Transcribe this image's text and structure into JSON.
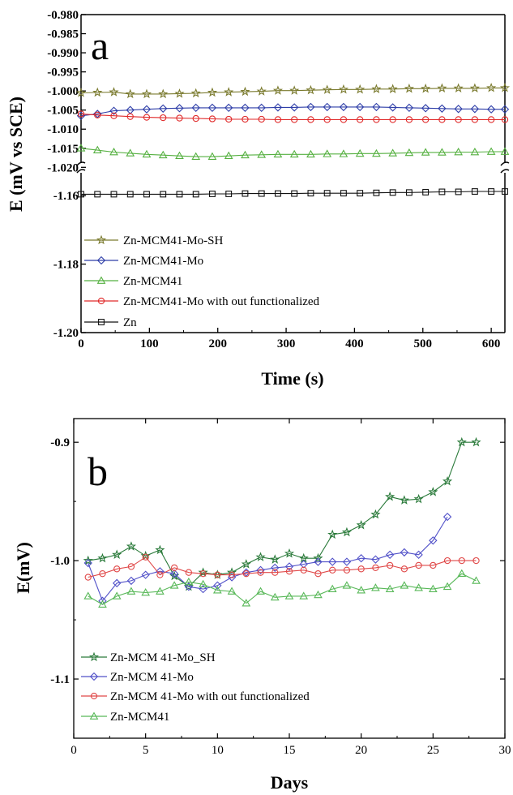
{
  "chart_data": [
    {
      "type": "line",
      "panel_label": "a",
      "xlabel": "Time (s)",
      "ylabel": "E (mV vs SCE)",
      "xlim": [
        0,
        620
      ],
      "x_ticks": [
        "0",
        "100",
        "200",
        "300",
        "400",
        "500",
        "600"
      ],
      "upper_ylim": [
        -1.021,
        -0.98
      ],
      "upper_ticks": [
        "-0.980",
        "-0.985",
        "-0.990",
        "-0.995",
        "-1.000",
        "-1.005",
        "-1.010",
        "-1.015",
        "-1.020"
      ],
      "lower_ylim": [
        -1.2,
        -1.155
      ],
      "lower_ticks": [
        "-1.16",
        "-1.18",
        "-1.20"
      ],
      "axis_break": true,
      "legend_position": "lower-left",
      "series": [
        {
          "name": "Zn-MCM41-Mo-SH",
          "color": "#7a7a2e",
          "marker": "star",
          "axis": "upper",
          "x": [
            0,
            24,
            48,
            72,
            96,
            120,
            144,
            168,
            192,
            216,
            240,
            264,
            288,
            312,
            336,
            360,
            384,
            408,
            432,
            456,
            480,
            504,
            528,
            552,
            576,
            600,
            620
          ],
          "y": [
            -1.0005,
            -1.0004,
            -1.0003,
            -1.0008,
            -1.0008,
            -1.0008,
            -1.0007,
            -1.0006,
            -1.0004,
            -1.0003,
            -1.0002,
            -1.0001,
            -0.9999,
            -0.9999,
            -0.9998,
            -0.9997,
            -0.9996,
            -0.9996,
            -0.9995,
            -0.9995,
            -0.9994,
            -0.9994,
            -0.9993,
            -0.9993,
            -0.9993,
            -0.9992,
            -0.9992
          ]
        },
        {
          "name": "Zn-MCM41-Mo",
          "color": "#2e3ea8",
          "marker": "diamond",
          "axis": "upper",
          "x": [
            0,
            24,
            48,
            72,
            96,
            120,
            144,
            168,
            192,
            216,
            240,
            264,
            288,
            312,
            336,
            360,
            384,
            408,
            432,
            456,
            480,
            504,
            528,
            552,
            576,
            600,
            620
          ],
          "y": [
            -1.0065,
            -1.006,
            -1.0052,
            -1.005,
            -1.0048,
            -1.0046,
            -1.0045,
            -1.0044,
            -1.0044,
            -1.0044,
            -1.0044,
            -1.0044,
            -1.0043,
            -1.0043,
            -1.0042,
            -1.0042,
            -1.0042,
            -1.0042,
            -1.0042,
            -1.0043,
            -1.0044,
            -1.0045,
            -1.0046,
            -1.0047,
            -1.0047,
            -1.0048,
            -1.0048
          ]
        },
        {
          "name": "Zn-MCM41",
          "color": "#55b040",
          "marker": "triangle",
          "axis": "upper",
          "x": [
            0,
            24,
            48,
            72,
            96,
            120,
            144,
            168,
            192,
            216,
            240,
            264,
            288,
            312,
            336,
            360,
            384,
            408,
            432,
            456,
            480,
            504,
            528,
            552,
            576,
            600,
            620
          ],
          "y": [
            -1.015,
            -1.0155,
            -1.016,
            -1.0163,
            -1.0166,
            -1.0168,
            -1.017,
            -1.0172,
            -1.0172,
            -1.017,
            -1.0168,
            -1.0167,
            -1.0166,
            -1.0166,
            -1.0166,
            -1.0165,
            -1.0165,
            -1.0164,
            -1.0164,
            -1.0163,
            -1.0162,
            -1.0161,
            -1.0161,
            -1.016,
            -1.016,
            -1.0159,
            -1.0159
          ]
        },
        {
          "name": "Zn-MCM41-Mo with out functionalized",
          "color": "#e02a2a",
          "marker": "circle",
          "axis": "upper",
          "x": [
            0,
            24,
            48,
            72,
            96,
            120,
            144,
            168,
            192,
            216,
            240,
            264,
            288,
            312,
            336,
            360,
            384,
            408,
            432,
            456,
            480,
            504,
            528,
            552,
            576,
            600,
            620
          ],
          "y": [
            -1.006,
            -1.0063,
            -1.0065,
            -1.0067,
            -1.0069,
            -1.007,
            -1.0071,
            -1.0072,
            -1.0073,
            -1.0074,
            -1.0074,
            -1.0074,
            -1.0075,
            -1.0075,
            -1.0075,
            -1.0075,
            -1.0075,
            -1.0075,
            -1.0075,
            -1.0075,
            -1.0075,
            -1.0075,
            -1.0075,
            -1.0075,
            -1.0075,
            -1.0075,
            -1.0075
          ]
        },
        {
          "name": "Zn",
          "color": "#111111",
          "marker": "square",
          "axis": "lower",
          "x": [
            0,
            24,
            48,
            72,
            96,
            120,
            144,
            168,
            192,
            216,
            240,
            264,
            288,
            312,
            336,
            360,
            384,
            408,
            432,
            456,
            480,
            504,
            528,
            552,
            576,
            600,
            620
          ],
          "y": [
            -1.1596,
            -1.1596,
            -1.1596,
            -1.1596,
            -1.1596,
            -1.1596,
            -1.1596,
            -1.1596,
            -1.1595,
            -1.1595,
            -1.1594,
            -1.1594,
            -1.1594,
            -1.1594,
            -1.1593,
            -1.1593,
            -1.1593,
            -1.1593,
            -1.1592,
            -1.1591,
            -1.1591,
            -1.159,
            -1.1589,
            -1.1589,
            -1.1588,
            -1.1588,
            -1.1588
          ]
        }
      ]
    },
    {
      "type": "line",
      "panel_label": "b",
      "xlabel": "Days",
      "ylabel": "E(mV)",
      "xlim": [
        0,
        30
      ],
      "ylim": [
        -1.15,
        -0.88
      ],
      "x_ticks": [
        "0",
        "5",
        "10",
        "15",
        "20",
        "25",
        "30"
      ],
      "y_ticks": [
        "-0.9",
        "-1.0",
        "-1.1"
      ],
      "legend_position": "lower-left",
      "series": [
        {
          "name": "Zn-MCM 41-Mo_SH",
          "color": "#2a7a3a",
          "marker": "star",
          "x": [
            1,
            2,
            3,
            4,
            5,
            6,
            7,
            8,
            9,
            10,
            11,
            12,
            13,
            14,
            15,
            16,
            17,
            18,
            19,
            20,
            21,
            22,
            23,
            24,
            25,
            26,
            27,
            28
          ],
          "y": [
            -1.0,
            -0.998,
            -0.995,
            -0.988,
            -0.996,
            -0.991,
            -1.013,
            -1.022,
            -1.01,
            -1.012,
            -1.01,
            -1.003,
            -0.997,
            -0.999,
            -0.994,
            -0.998,
            -0.998,
            -0.978,
            -0.976,
            -0.97,
            -0.961,
            -0.946,
            -0.949,
            -0.948,
            -0.942,
            -0.933,
            -0.9,
            -0.9
          ]
        },
        {
          "name": "Zn-MCM 41-Mo",
          "color": "#5050c8",
          "marker": "diamond",
          "x": [
            1,
            2,
            3,
            4,
            5,
            6,
            7,
            8,
            9,
            10,
            11,
            12,
            13,
            14,
            15,
            16,
            17,
            18,
            19,
            20,
            21,
            22,
            23,
            24,
            25,
            26
          ],
          "y": [
            -1.002,
            -1.034,
            -1.019,
            -1.017,
            -1.012,
            -1.009,
            -1.011,
            -1.022,
            -1.024,
            -1.021,
            -1.014,
            -1.01,
            -1.008,
            -1.006,
            -1.005,
            -1.003,
            -1.001,
            -1.001,
            -1.001,
            -0.998,
            -0.999,
            -0.995,
            -0.993,
            -0.995,
            -0.983,
            -0.963
          ]
        },
        {
          "name": "Zn-MCM 41-Mo with out functionalized",
          "color": "#e04848",
          "marker": "circle",
          "x": [
            1,
            2,
            3,
            4,
            5,
            6,
            7,
            8,
            9,
            10,
            11,
            12,
            13,
            14,
            15,
            16,
            17,
            18,
            19,
            20,
            21,
            22,
            23,
            24,
            25,
            26,
            27,
            28
          ],
          "y": [
            -1.014,
            -1.011,
            -1.007,
            -1.005,
            -0.997,
            -1.012,
            -1.006,
            -1.01,
            -1.011,
            -1.012,
            -1.012,
            -1.011,
            -1.01,
            -1.01,
            -1.009,
            -1.008,
            -1.011,
            -1.008,
            -1.008,
            -1.007,
            -1.006,
            -1.004,
            -1.007,
            -1.004,
            -1.004,
            -1.0,
            -1.0,
            -1.0
          ]
        },
        {
          "name": "Zn-MCM41",
          "color": "#58b858",
          "marker": "triangle",
          "x": [
            1,
            2,
            3,
            4,
            5,
            6,
            7,
            8,
            9,
            10,
            11,
            12,
            13,
            14,
            15,
            16,
            17,
            18,
            19,
            20,
            21,
            22,
            23,
            24,
            25,
            26,
            27,
            28
          ],
          "y": [
            -1.03,
            -1.037,
            -1.03,
            -1.026,
            -1.027,
            -1.026,
            -1.021,
            -1.018,
            -1.02,
            -1.025,
            -1.026,
            -1.036,
            -1.026,
            -1.031,
            -1.03,
            -1.03,
            -1.029,
            -1.024,
            -1.021,
            -1.025,
            -1.023,
            -1.024,
            -1.021,
            -1.023,
            -1.024,
            -1.022,
            -1.011,
            -1.017
          ]
        }
      ]
    }
  ]
}
